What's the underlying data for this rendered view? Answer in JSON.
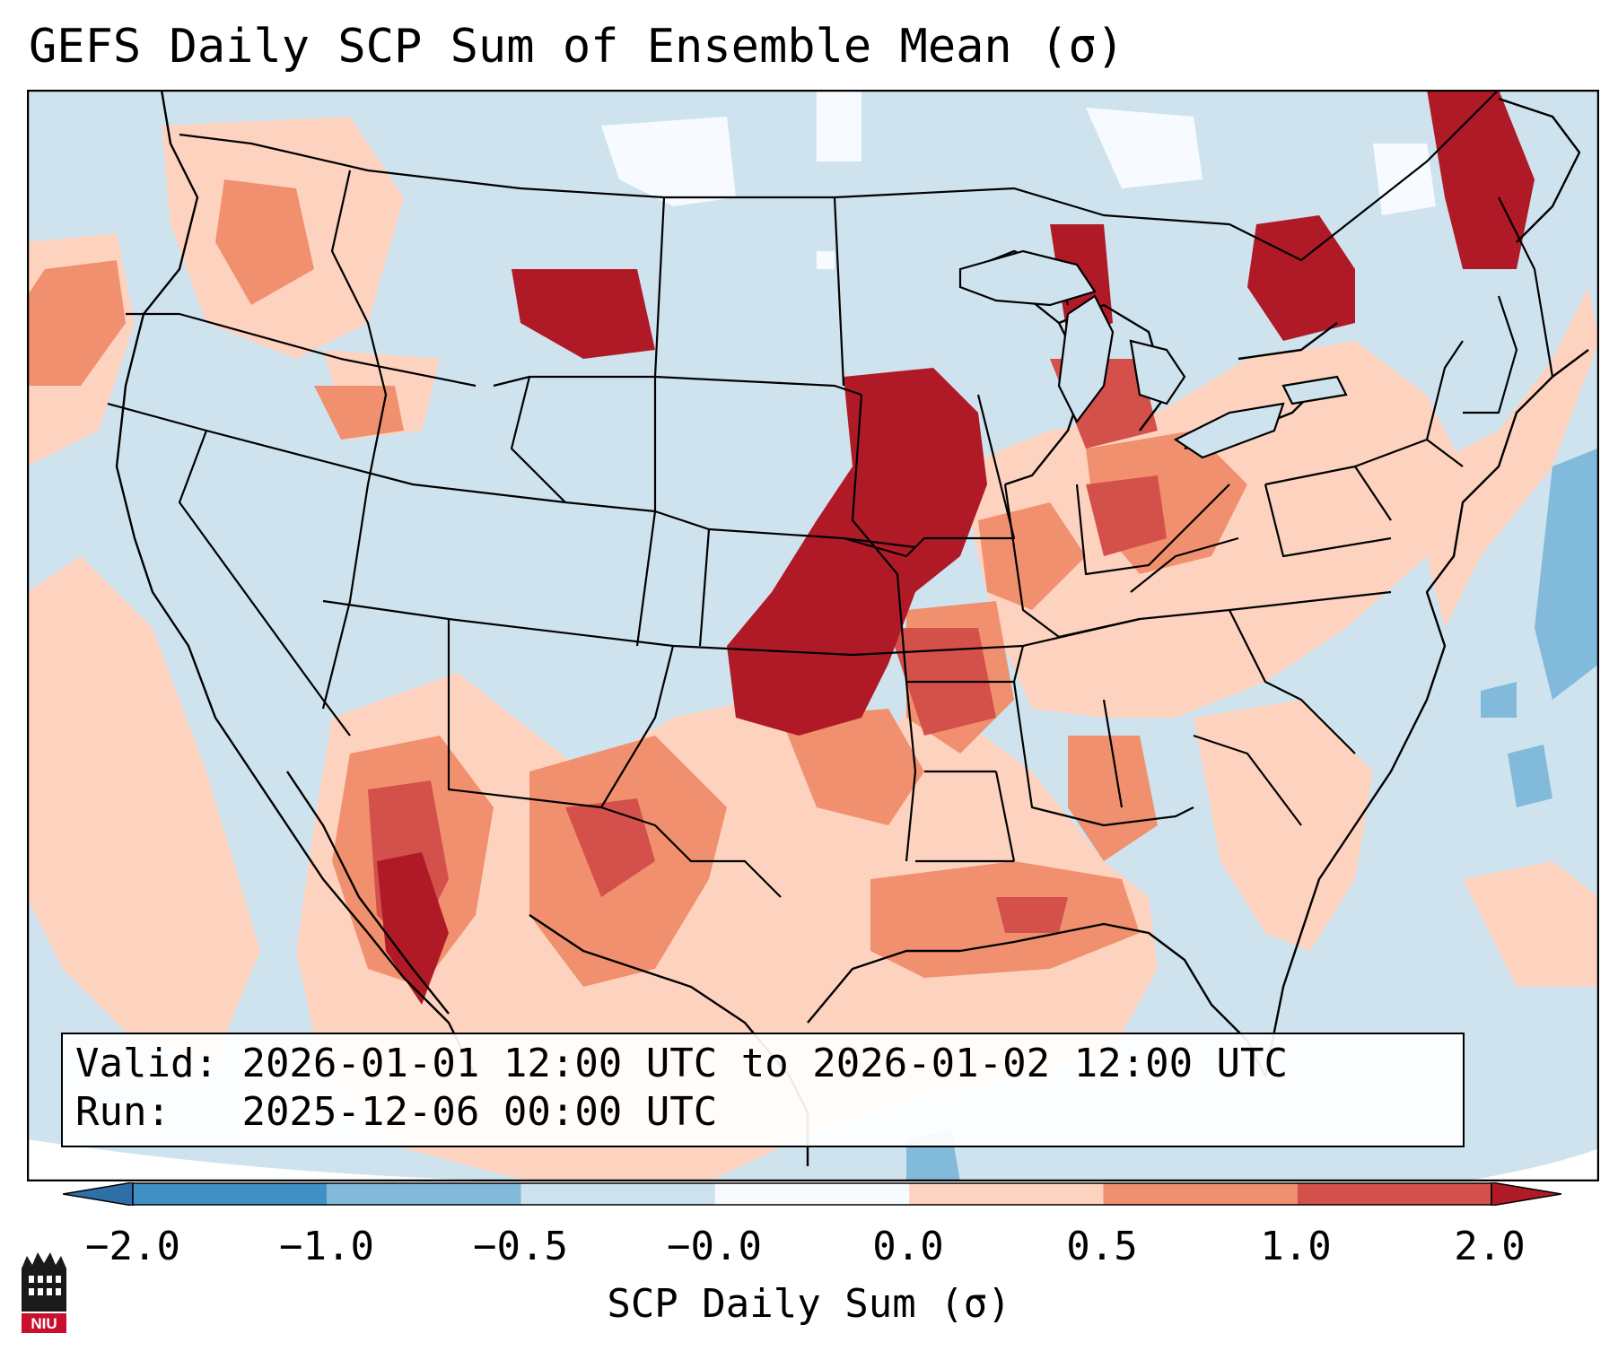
{
  "title": "GEFS Daily SCP Sum of Ensemble Mean (σ)",
  "info": {
    "valid_label": "Valid:",
    "valid_value": "2026-01-01 12:00 UTC to 2026-01-02 12:00 UTC",
    "run_label": "Run:",
    "run_value": "2025-12-06 00:00 UTC"
  },
  "colorbar": {
    "label": "SCP Daily Sum (σ)",
    "ticks": [
      "−2.0",
      "−1.0",
      "−0.5",
      "−0.0",
      "0.0",
      "0.5",
      "1.0",
      "2.0"
    ],
    "colors": [
      "#4090c5",
      "#82badb",
      "#cde2ef",
      "#f7fbff",
      "#fdd3c0",
      "#f0906e",
      "#d4504a",
      "#b01a27"
    ],
    "extend_min_color": "#2f6fa8",
    "extend_max_color": "#b01a27"
  },
  "logo": {
    "text": "NIU"
  }
}
